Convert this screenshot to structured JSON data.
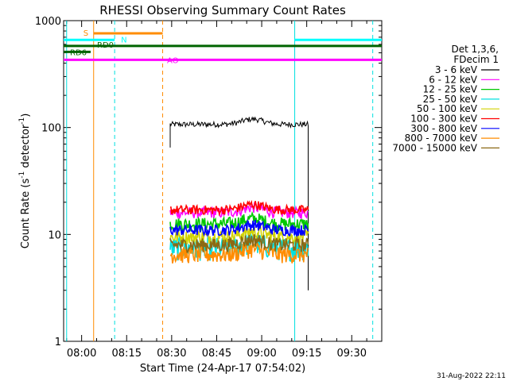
{
  "chart_data": {
    "type": "line",
    "title": "RHESSI Observing Summary Count Rates",
    "xlabel": "Start Time (24-Apr-17 07:54:02)",
    "ylabel_parts": [
      "Count Rate (s",
      "-1",
      " detector",
      "-1",
      ")"
    ],
    "yscale": "log",
    "ylim": [
      1,
      1000
    ],
    "xlim_minutes": [
      -6,
      100
    ],
    "x_ticks": [
      {
        "label": "08:00",
        "min": 0
      },
      {
        "label": "08:15",
        "min": 15
      },
      {
        "label": "08:30",
        "min": 30
      },
      {
        "label": "08:45",
        "min": 45
      },
      {
        "label": "09:00",
        "min": 60
      },
      {
        "label": "09:15",
        "min": 75
      },
      {
        "label": "09:30",
        "min": 90
      }
    ],
    "y_ticks": [
      {
        "label": "1",
        "value": 1
      },
      {
        "label": "10",
        "value": 10
      },
      {
        "label": "100",
        "value": 100
      },
      {
        "label": "1000",
        "value": 1000
      }
    ],
    "legend_title": [
      "Det 1,3,6,",
      "FDecim 1"
    ],
    "legend_position": "right",
    "data_start_min": 29.5,
    "data_end_min": 75.5,
    "series": [
      {
        "name": "3 - 6 keV",
        "color": "#000000",
        "level": 107,
        "noise": 0.06
      },
      {
        "name": "6 - 12 keV",
        "color": "#ff00ff",
        "level": 16,
        "noise": 0.12
      },
      {
        "name": "12 - 25 keV",
        "color": "#00c800",
        "level": 12.5,
        "noise": 0.15
      },
      {
        "name": "25 - 50 keV",
        "color": "#00e0e0",
        "level": 7.5,
        "noise": 0.25
      },
      {
        "name": "50 - 100 keV",
        "color": "#d2d200",
        "level": 9.5,
        "noise": 0.15
      },
      {
        "name": "100 - 300 keV",
        "color": "#ff0000",
        "level": 17,
        "noise": 0.1
      },
      {
        "name": "300 - 800 keV",
        "color": "#0000ff",
        "level": 11,
        "noise": 0.12
      },
      {
        "name": "800 - 7000 keV",
        "color": "#ff8c00",
        "level": 6.5,
        "noise": 0.18
      },
      {
        "name": "7000 - 15000 keV",
        "color": "#8b6914",
        "level": 8,
        "noise": 0.15
      }
    ],
    "flag_bars": [
      {
        "label": "S",
        "color": "#ff8c00",
        "value": 760,
        "start_min": 4,
        "end_min": 27
      },
      {
        "label": "N",
        "color": "#00ffff",
        "value": 660,
        "start_min": -6,
        "end_min": 11
      },
      {
        "label": "N",
        "color": "#00ffff",
        "value": 660,
        "start_min": 71,
        "end_min": 100,
        "show_label": false
      },
      {
        "label": "RD0",
        "color": "#006400",
        "value": 580,
        "start_min": -6,
        "end_min": 100
      },
      {
        "label": "RD6",
        "color": "#006400",
        "value": 510,
        "start_min": -6,
        "end_min": 3
      },
      {
        "label": "AO",
        "color": "#ff00ff",
        "value": 430,
        "start_min": -6,
        "end_min": 100
      }
    ],
    "vertical_markers": [
      {
        "min": -5,
        "color": "#00e0e0",
        "style": "solid"
      },
      {
        "min": 4,
        "color": "#ff8c00",
        "style": "solid"
      },
      {
        "min": 11,
        "color": "#00e0e0",
        "style": "dashed"
      },
      {
        "min": 27,
        "color": "#ff8c00",
        "style": "dashed"
      },
      {
        "min": 71,
        "color": "#00e0e0",
        "style": "solid"
      },
      {
        "min": 97,
        "color": "#00e0e0",
        "style": "dashed"
      }
    ],
    "footer_timestamp": "31-Aug-2022 22:11"
  }
}
